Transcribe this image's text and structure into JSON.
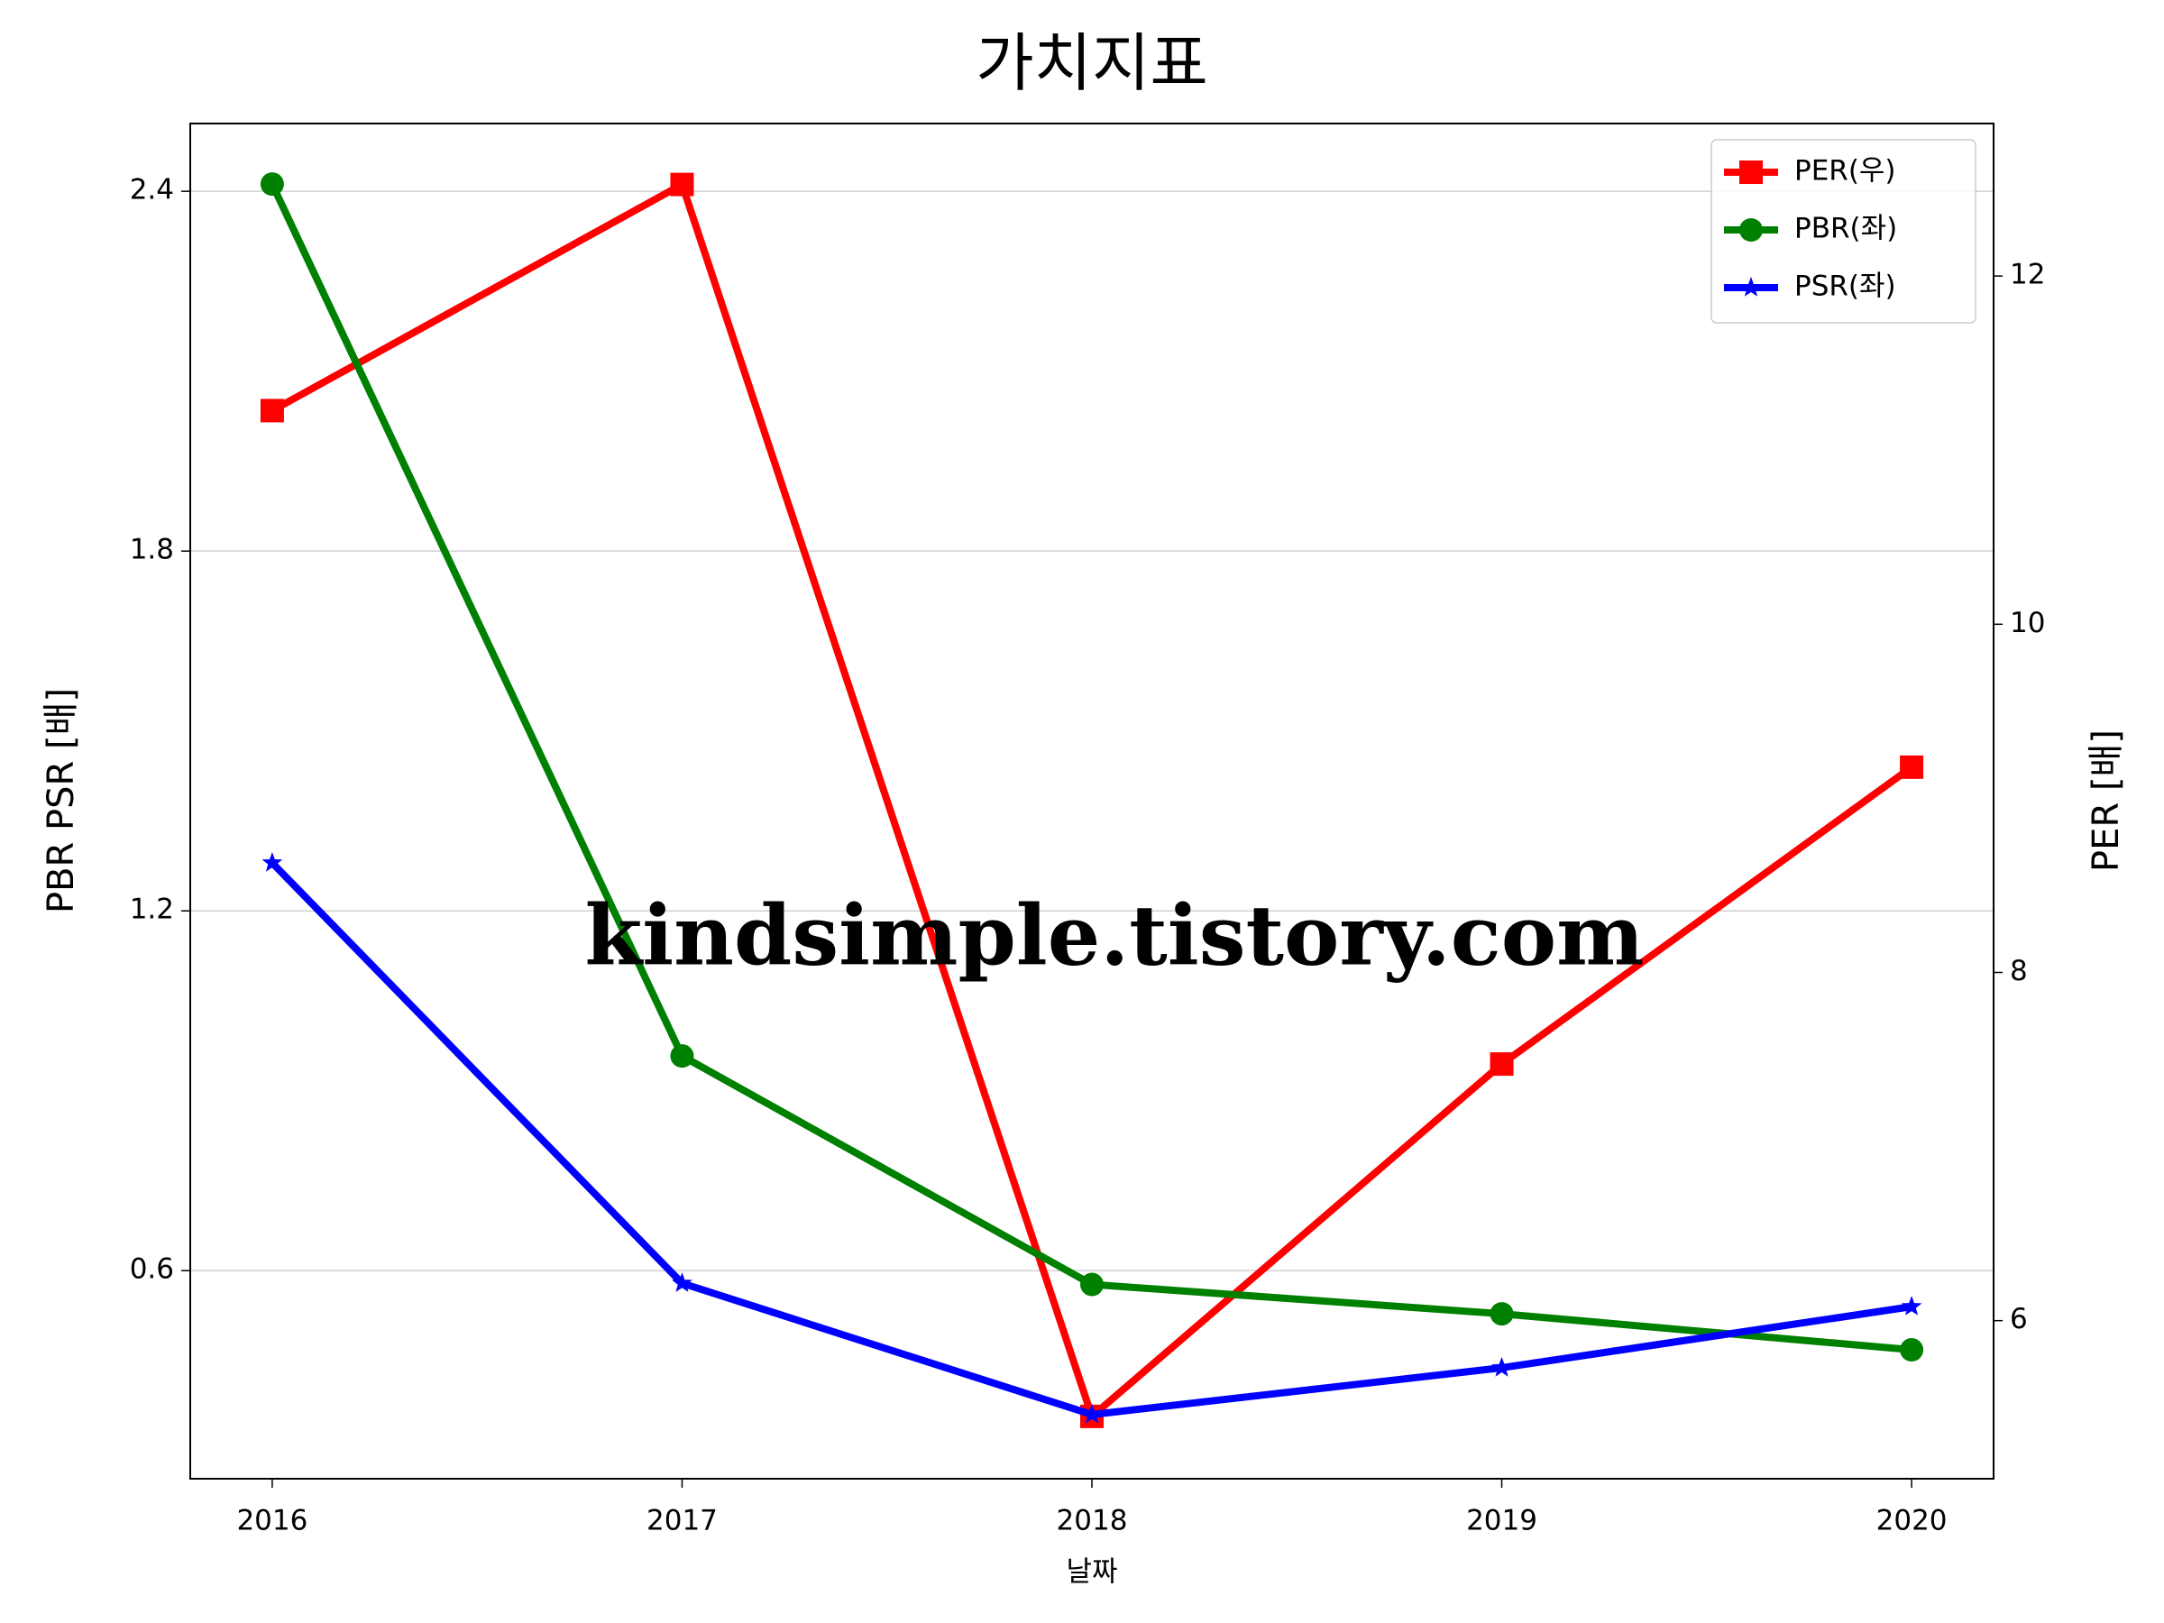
{
  "chart_data": {
    "type": "line",
    "title": "가치지표",
    "xlabel": "날짜",
    "ylabel": "PBR PSR [배]",
    "y2label": "PER [배]",
    "ylabel_color": "#008000",
    "y2label_color": "#ff0000",
    "watermark": "kindsimple.tistory.com",
    "x": [
      2016,
      2017,
      2018,
      2019,
      2020
    ],
    "xlim": [
      2015.8,
      2020.2
    ],
    "xticks": [
      2016,
      2017,
      2018,
      2019,
      2020
    ],
    "ylim": [
      0.253,
      2.513
    ],
    "yticks": [
      0.6,
      1.2,
      1.8,
      2.4
    ],
    "y2lim": [
      5.092,
      12.876
    ],
    "y2ticks": [
      6,
      8,
      10,
      12
    ],
    "grid": true,
    "legend": "upper right",
    "series": [
      {
        "name": "PER(우)",
        "color": "#ff0000",
        "marker": "square",
        "axis": "y2",
        "values": [
          11.227,
          12.526,
          5.45,
          7.474,
          9.179
        ]
      },
      {
        "name": "PBR(좌)",
        "color": "#008000",
        "marker": "circle",
        "values": [
          2.412,
          0.958,
          0.577,
          0.528,
          0.468
        ]
      },
      {
        "name": "PSR(좌)",
        "color": "#0000ff",
        "marker": "star",
        "values": [
          1.28,
          0.579,
          0.36,
          0.438,
          0.54
        ]
      }
    ]
  }
}
